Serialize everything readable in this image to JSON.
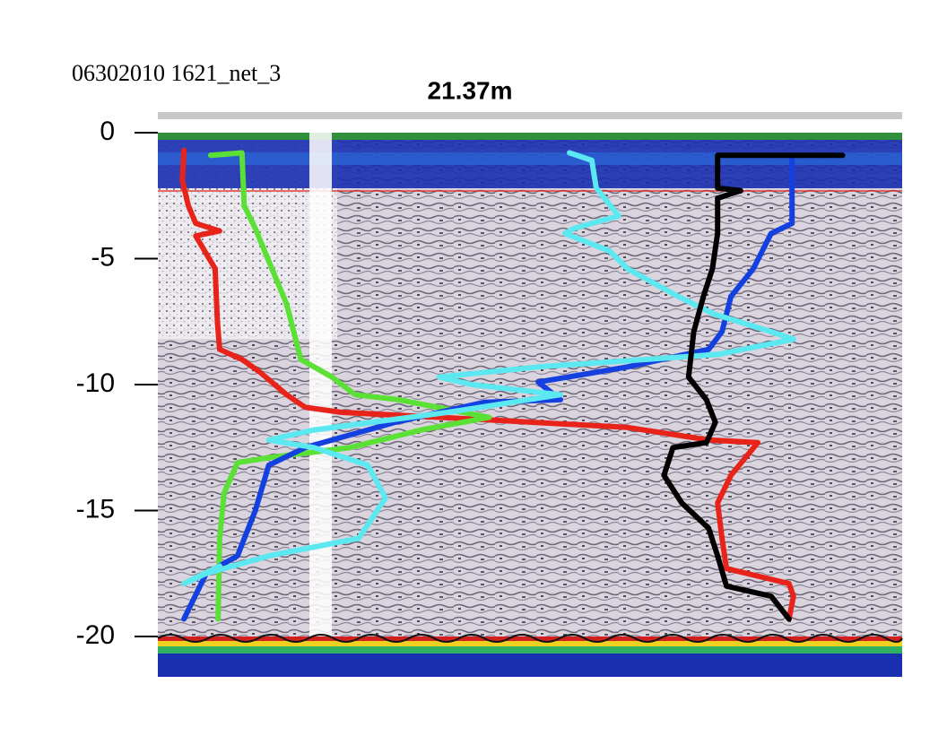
{
  "chart_data": {
    "type": "line",
    "subtitle": "06302010 1621_net_3",
    "title": "21.37m",
    "xlim": [
      0,
      100
    ],
    "ylim": [
      -21.6,
      0
    ],
    "yticks": [
      0,
      -5,
      -10,
      -15,
      -20
    ],
    "series": [
      {
        "color": "#e8231a",
        "x": [
          3.5,
          3.3,
          4.1,
          5.1,
          8.3,
          5.1,
          6.3,
          7.7,
          8.0,
          8.3,
          11.3,
          13.7,
          17.3,
          19.8,
          24.6,
          44.5,
          63.1,
          74.0,
          80.6,
          77.0,
          75.2,
          75.8,
          76.4,
          84.8,
          85.4,
          84.8
        ],
        "values": [
          -0.7,
          -1.9,
          -2.9,
          -3.6,
          -3.9,
          -4.1,
          -4.7,
          -5.4,
          -7.5,
          -8.6,
          -9.0,
          -9.5,
          -10.4,
          -10.9,
          -11.1,
          -11.4,
          -11.7,
          -12.2,
          -12.3,
          -13.6,
          -14.7,
          -16.1,
          -17.3,
          -17.9,
          -18.4,
          -19.3
        ]
      },
      {
        "color": "#5be035",
        "x": [
          7.1,
          11.3,
          11.6,
          13.1,
          14.9,
          17.3,
          19.2,
          23.4,
          26.5,
          32.4,
          44.5,
          35.4,
          25.8,
          14.9,
          10.7,
          8.9,
          8.3,
          8.1
        ],
        "values": [
          -0.9,
          -0.8,
          -2.9,
          -3.8,
          -5.1,
          -6.8,
          -9.0,
          -9.7,
          -10.4,
          -10.6,
          -11.3,
          -11.8,
          -12.5,
          -12.9,
          -13.1,
          -14.3,
          -16.1,
          -19.3
        ]
      },
      {
        "color": "#1540e0",
        "x": [
          85.2,
          85.2,
          82.4,
          80.0,
          77.0,
          75.8,
          74.0,
          63.1,
          51.1,
          54.1,
          43.9,
          31.8,
          19.8,
          14.9,
          13.1,
          10.7,
          6.5,
          3.5
        ],
        "values": [
          -0.9,
          -3.6,
          -4.0,
          -5.4,
          -6.5,
          -7.9,
          -8.6,
          -9.3,
          -9.9,
          -10.6,
          -10.7,
          -11.5,
          -12.5,
          -13.2,
          -15.0,
          -16.8,
          -17.5,
          -19.3
        ]
      },
      {
        "color": "#5ce8f0",
        "x": [
          55.3,
          58.3,
          58.9,
          61.9,
          55.9,
          54.7,
          60.7,
          63.1,
          69.9,
          74.7,
          82.4,
          85.4,
          75.3,
          51.1,
          37.8,
          42.2,
          54.1,
          39.0,
          21.0,
          14.9,
          21.0,
          28.2,
          30.6,
          27.0,
          14.9,
          6.5,
          3.5,
          8.3
        ],
        "values": [
          -0.8,
          -1.1,
          -2.2,
          -3.3,
          -3.8,
          -4.0,
          -4.7,
          -5.4,
          -6.5,
          -7.2,
          -7.9,
          -8.2,
          -8.8,
          -9.3,
          -9.7,
          -10.0,
          -10.4,
          -11.1,
          -11.8,
          -12.2,
          -12.5,
          -13.2,
          -14.5,
          -16.1,
          -16.8,
          -17.5,
          -17.9,
          -17.2
        ]
      },
      {
        "color": "#000000",
        "x": [
          92.0,
          75.2,
          75.2,
          78.3,
          75.2,
          75.2,
          74.5,
          73.3,
          72.0,
          71.3,
          73.7,
          74.9,
          73.7,
          69.2,
          68.0,
          70.4,
          74.0,
          75.2,
          76.4,
          82.4,
          84.8
        ],
        "values": [
          -0.9,
          -0.9,
          -2.2,
          -2.3,
          -2.6,
          -4.0,
          -5.4,
          -6.5,
          -7.9,
          -9.7,
          -10.6,
          -11.5,
          -12.3,
          -12.5,
          -13.6,
          -14.7,
          -15.7,
          -16.8,
          -18.0,
          -18.4,
          -19.3
        ]
      }
    ]
  }
}
